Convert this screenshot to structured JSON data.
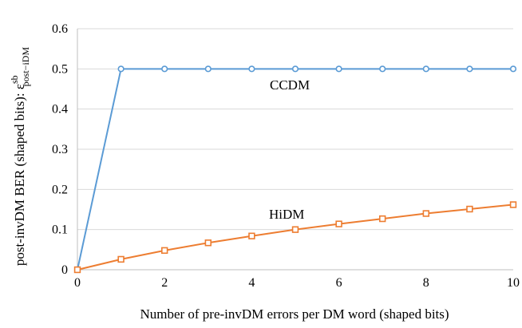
{
  "chart_data": {
    "type": "line",
    "xlabel": "Number of pre-invDM errors per DM word (shaped bits)",
    "ylabel": {
      "text": "post-invDM BER (shaped bits): ε",
      "superscript": "sb",
      "subscript": "post−iDM"
    },
    "xlim": [
      0,
      10
    ],
    "ylim": [
      0,
      0.6
    ],
    "xticks": [
      "0",
      "2",
      "4",
      "6",
      "8",
      "10"
    ],
    "yticks": [
      "0",
      "0.1",
      "0.2",
      "0.3",
      "0.4",
      "0.5",
      "0.6"
    ],
    "grid": "horizontal",
    "legend": "none",
    "x": [
      0,
      1,
      2,
      3,
      4,
      5,
      6,
      7,
      8,
      9,
      10
    ],
    "series": [
      {
        "name": "CCDM",
        "color": "#5B9BD5",
        "marker": "circle",
        "values": [
          0,
          0.5,
          0.5,
          0.5,
          0.5,
          0.5,
          0.5,
          0.5,
          0.5,
          0.5,
          0.5
        ]
      },
      {
        "name": "HiDM",
        "color": "#ED7D31",
        "marker": "square",
        "values": [
          0,
          0.026,
          0.048,
          0.067,
          0.084,
          0.1,
          0.114,
          0.127,
          0.14,
          0.151,
          0.162
        ]
      }
    ]
  }
}
